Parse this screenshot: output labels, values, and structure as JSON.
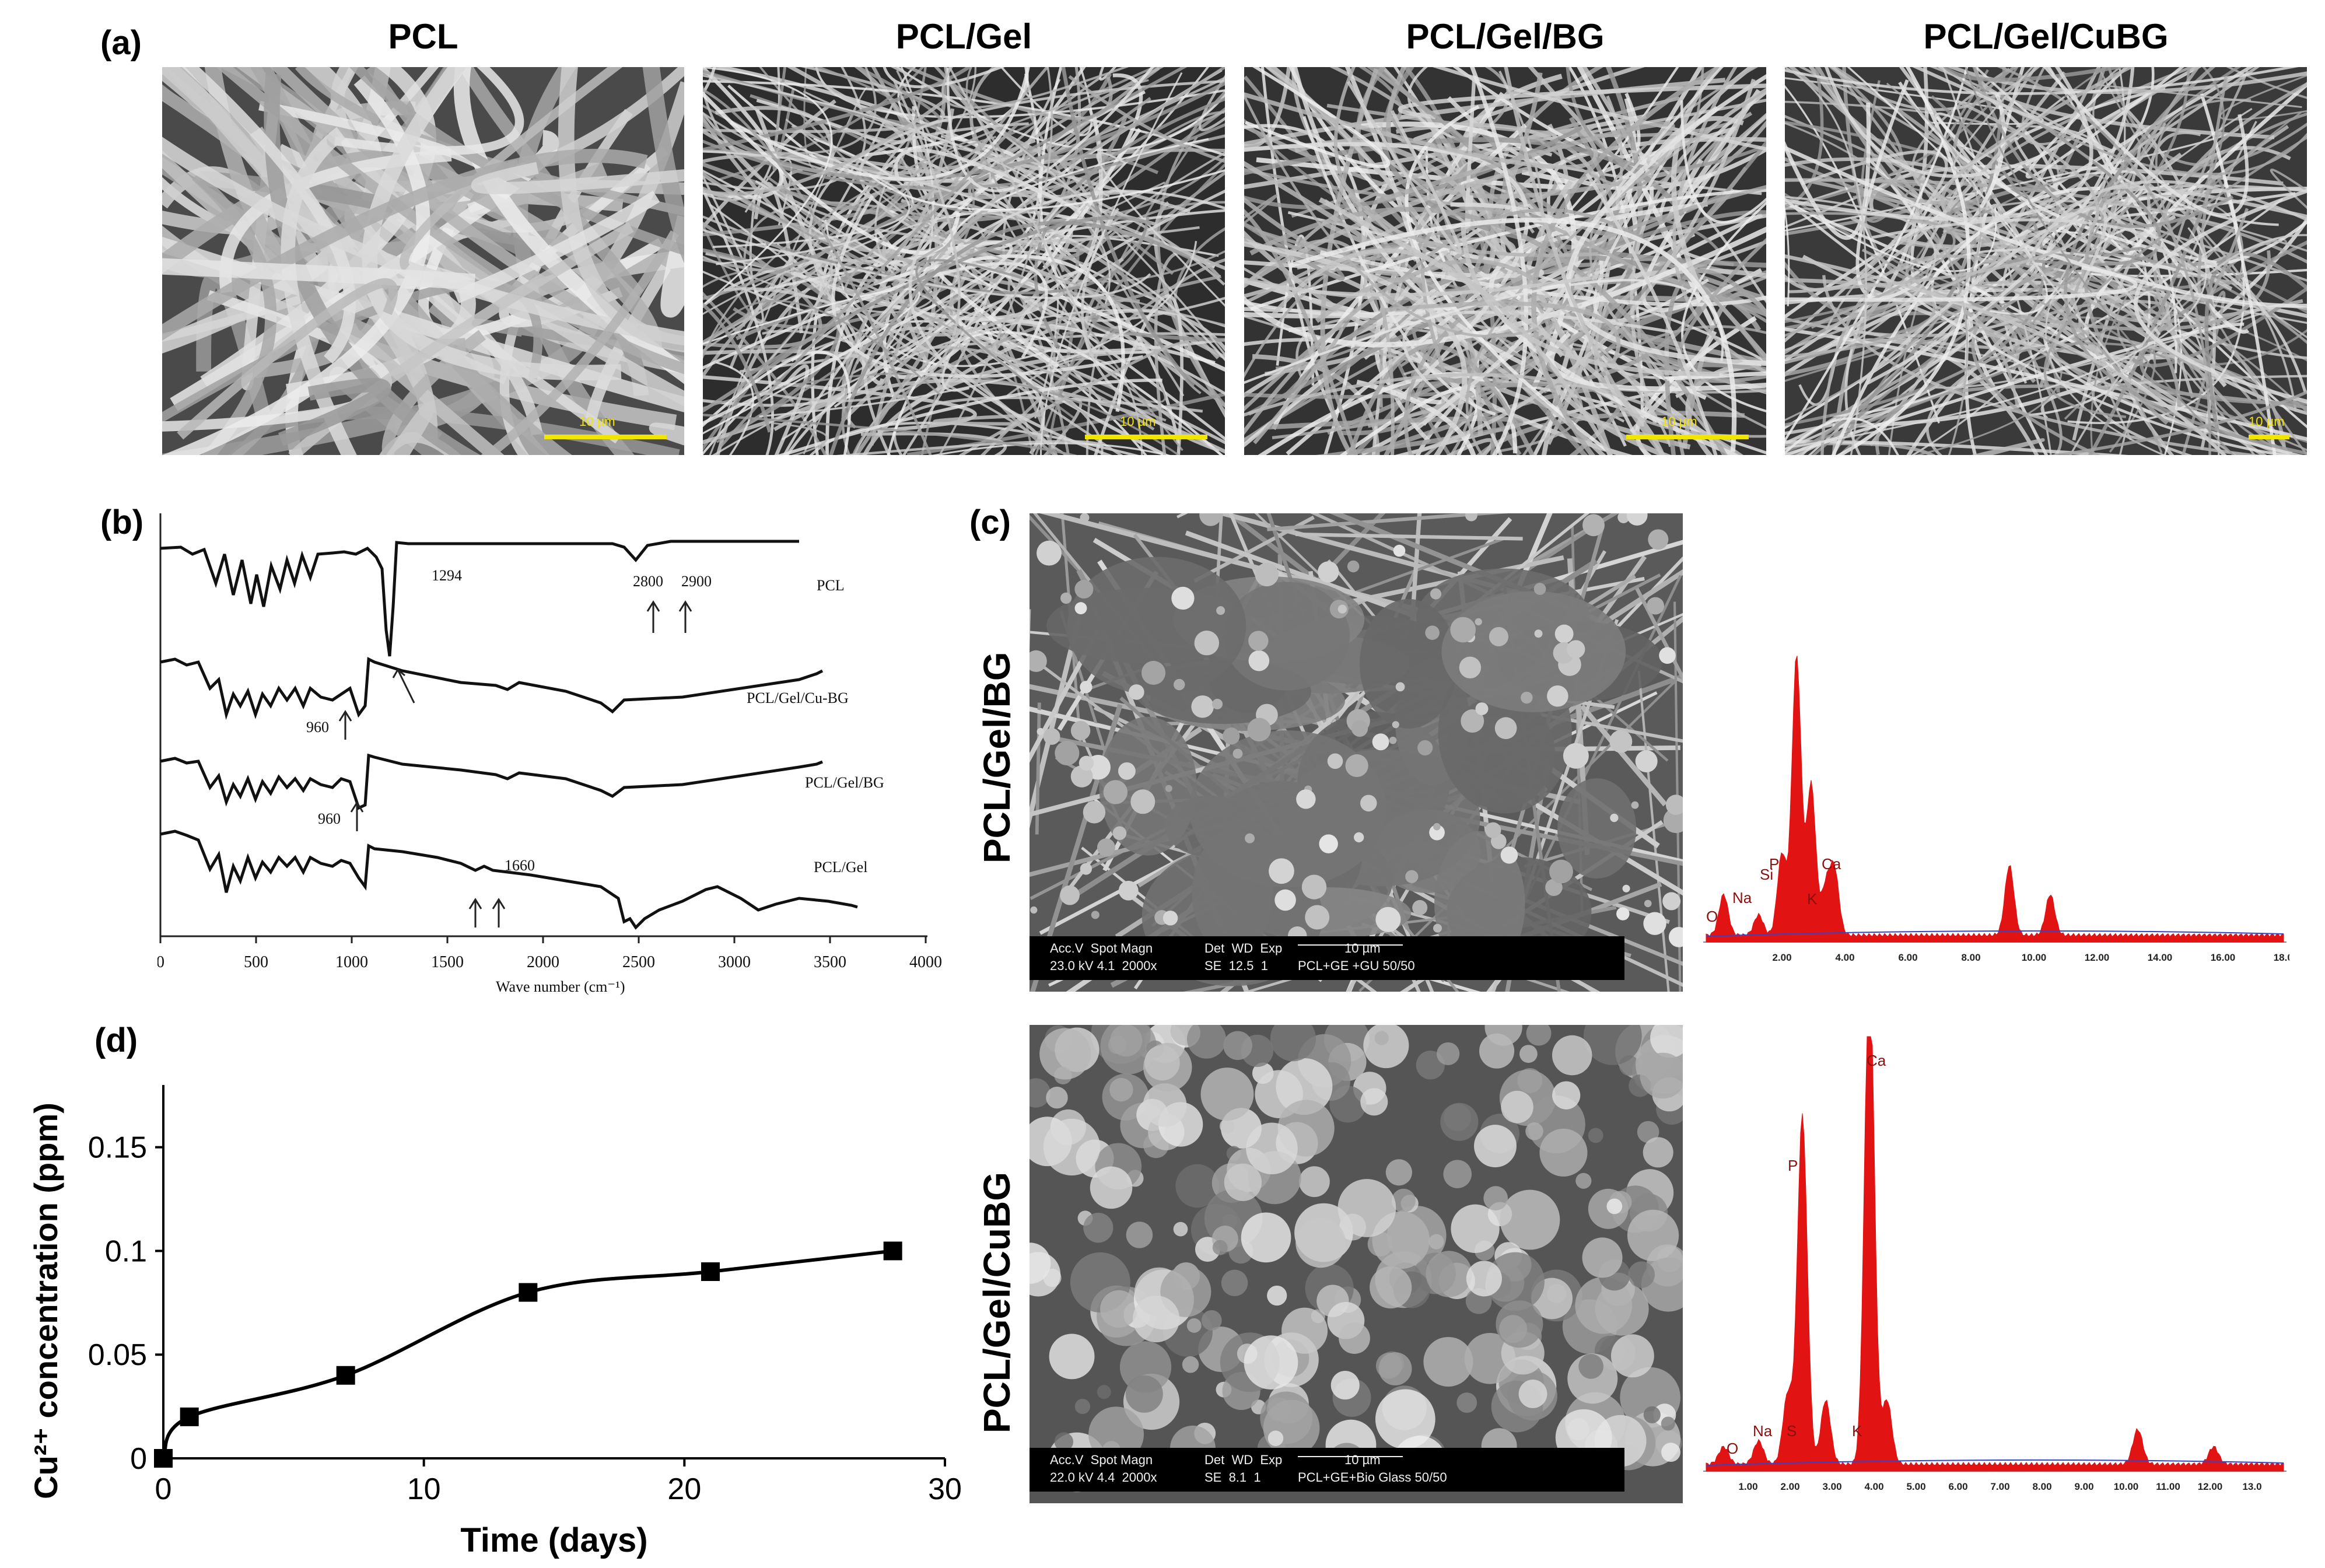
{
  "panel_labels": {
    "a": "(a)",
    "b": "(b)",
    "c": "(c)",
    "d": "(d)"
  },
  "sem_panels": [
    {
      "title": "PCL",
      "scale": "10 µm"
    },
    {
      "title": "PCL/Gel",
      "scale": "10 µm"
    },
    {
      "title": "PCL/Gel/BG",
      "scale": "10 µm"
    },
    {
      "title": "PCL/Gel/CuBG",
      "scale": "10 µm"
    }
  ],
  "ftir": {
    "xlabel": "Wave number (cm⁻¹)",
    "x_ticks": [
      "0",
      "500",
      "1000",
      "1500",
      "2000",
      "2500",
      "3000",
      "3500",
      "4000"
    ],
    "series": [
      {
        "name": "PCL",
        "annotations": [
          "1294",
          "2800",
          "2900"
        ]
      },
      {
        "name": "PCL/Gel/Cu-BG",
        "annotations": [
          "960"
        ]
      },
      {
        "name": "PCL/Gel/BG",
        "annotations": [
          "960"
        ]
      },
      {
        "name": "PCL/Gel",
        "annotations": [
          "1660"
        ]
      }
    ]
  },
  "panel_c": {
    "rows": [
      {
        "label": "PCL/Gel/BG",
        "info": {
          "h1": "Acc.V  Spot Magn",
          "h2": "Det  WD  Exp",
          "scale": "10 µm",
          "v1": "23.0 kV 4.1  2000x",
          "v2": "SE  12.5  1",
          "sample": "PCL+GE +GU 50/50"
        },
        "edx_peaks": [
          "O",
          "Na",
          "P",
          "Si",
          "K",
          "Ca"
        ],
        "edx_ticks": [
          "2.00",
          "4.00",
          "6.00",
          "8.00",
          "10.00",
          "12.00",
          "14.00",
          "16.00",
          "18.00"
        ]
      },
      {
        "label": "PCL/Gel/CuBG",
        "info": {
          "h1": "Acc.V  Spot Magn",
          "h2": "Det  WD  Exp",
          "scale": "10 µm",
          "v1": "22.0 kV 4.4  2000x",
          "v2": "SE  8.1  1",
          "sample": "PCL+GE+Bio Glass 50/50"
        },
        "edx_peaks": [
          "O",
          "Na",
          "S",
          "P",
          "K",
          "Ca"
        ],
        "edx_ticks": [
          "1.00",
          "2.00",
          "3.00",
          "4.00",
          "5.00",
          "6.00",
          "7.00",
          "8.00",
          "9.00",
          "10.00",
          "11.00",
          "12.00",
          "13.0"
        ]
      }
    ]
  },
  "chart_data": {
    "type": "line",
    "xlabel": "Time (days)",
    "ylabel": "Cu²⁺ concentration (ppm)",
    "x": [
      0,
      1,
      7,
      14,
      21,
      28
    ],
    "series": [
      {
        "values": [
          0,
          0.02,
          0.04,
          0.08,
          0.09,
          0.1
        ]
      }
    ],
    "xlim": [
      0,
      30
    ],
    "ylim": [
      0,
      0.18
    ],
    "x_ticks": [
      "0",
      "10",
      "20",
      "30"
    ],
    "y_ticks": [
      "0",
      "0.05",
      "0.1",
      "0.15"
    ],
    "marker": "square",
    "color": "#000000",
    "grid": false
  }
}
